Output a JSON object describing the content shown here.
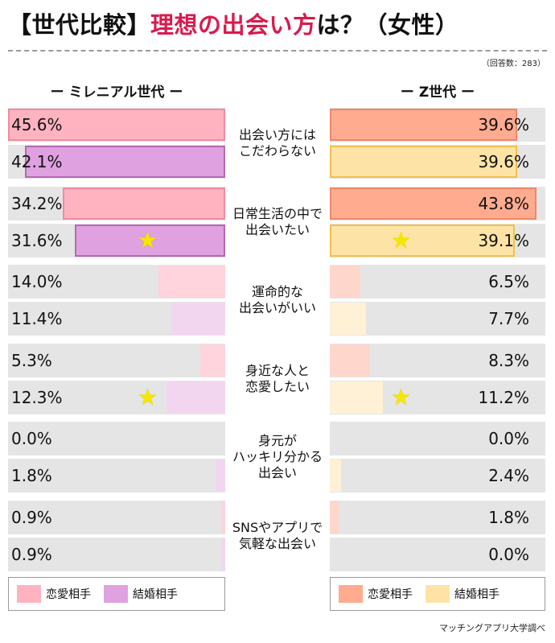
{
  "title": {
    "bracket_text": "【世代比較】",
    "accent_text": "理想の出会い方",
    "tail_text": "は？（女性）"
  },
  "respondents": "（回答数：283）",
  "source": "マッチングアプリ大学調べ",
  "colors": {
    "mil_love": "#ffb3c1",
    "mil_marriage": "#dfa1df",
    "mil_love_light": "#ffd4dc",
    "mil_marriage_light": "#f2d6f0",
    "z_love": "#ffab8f",
    "z_marriage": "#fde4a6",
    "z_love_light": "#ffd6cc",
    "z_marriage_light": "#fff1d6",
    "row_bg": "#e5e5e5"
  },
  "chart_data": {
    "type": "bar",
    "left_panel": "ー ミレニアル世代 ー",
    "right_panel": "ー Z世代 ー",
    "legend_left": [
      "恋愛相手",
      "結婚相手"
    ],
    "legend_right": [
      "恋愛相手",
      "結婚相手"
    ],
    "categories": [
      {
        "lines": [
          "出会い方には",
          "こだわらない"
        ]
      },
      {
        "lines": [
          "日常生活の中で",
          "出会いたい"
        ]
      },
      {
        "lines": [
          "運命的な",
          "出会いがいい"
        ]
      },
      {
        "lines": [
          "身近な人と",
          "恋愛したい"
        ]
      },
      {
        "lines": [
          "身元が",
          "ハッキリ分かる",
          "出会い"
        ]
      },
      {
        "lines": [
          "SNSやアプリで",
          "気軽な出会い"
        ]
      }
    ],
    "series": [
      {
        "name": "ミレニアル世代 恋愛相手",
        "values": [
          45.6,
          34.2,
          14.0,
          5.3,
          0.0,
          0.9
        ],
        "labels": [
          "45.6%",
          "34.2%",
          "14.0%",
          "5.3%",
          "0.0%",
          "0.9%"
        ]
      },
      {
        "name": "ミレニアル世代 結婚相手",
        "values": [
          42.1,
          31.6,
          11.4,
          12.3,
          1.8,
          0.9
        ],
        "labels": [
          "42.1%",
          "31.6%",
          "11.4%",
          "12.3%",
          "1.8%",
          "0.9%"
        ]
      },
      {
        "name": "Z世代 恋愛相手",
        "values": [
          39.6,
          43.8,
          6.5,
          8.3,
          0.0,
          1.8
        ],
        "labels": [
          "39.6%",
          "43.8%",
          "6.5%",
          "8.3%",
          "0.0%",
          "1.8%"
        ]
      },
      {
        "name": "Z世代 結婚相手",
        "values": [
          39.6,
          39.1,
          7.7,
          11.2,
          2.4,
          0.0
        ],
        "labels": [
          "39.6%",
          "39.1%",
          "7.7%",
          "11.2%",
          "2.4%",
          "0.0%"
        ]
      }
    ],
    "highlighted": [
      1,
      3
    ],
    "xlim": [
      0,
      45.6
    ]
  }
}
